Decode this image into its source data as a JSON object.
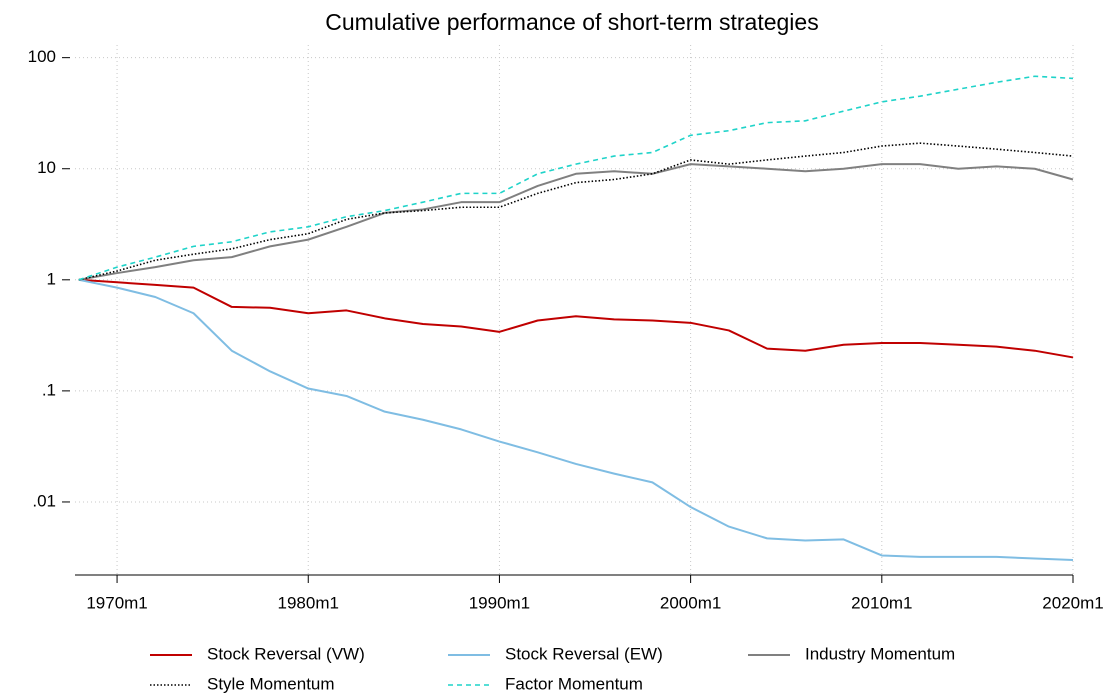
{
  "chart_data": {
    "type": "line",
    "title": "Cumulative performance of short-term strategies",
    "x": [
      1968,
      1970,
      1972,
      1974,
      1976,
      1978,
      1980,
      1982,
      1984,
      1986,
      1988,
      1990,
      1992,
      1994,
      1996,
      1998,
      2000,
      2002,
      2004,
      2006,
      2008,
      2010,
      2012,
      2014,
      2016,
      2018,
      2020
    ],
    "xlim": [
      1967.8,
      2020
    ],
    "xticks": [
      {
        "value": 1970,
        "label": "1970m1"
      },
      {
        "value": 1980,
        "label": "1980m1"
      },
      {
        "value": 1990,
        "label": "1990m1"
      },
      {
        "value": 2000,
        "label": "2000m1"
      },
      {
        "value": 2010,
        "label": "2010m1"
      },
      {
        "value": 2020,
        "label": "2020m1"
      }
    ],
    "ylim": [
      0.0022,
      130
    ],
    "yticks": [
      100,
      10,
      1,
      {
        "value": 0.1,
        "label": ".1"
      },
      {
        "value": 0.01,
        "label": ".01"
      }
    ],
    "log_scale": "y",
    "grid": true,
    "legend": "bottom",
    "series": [
      {
        "name": "Stock Reversal (VW)",
        "color": "#c00000",
        "dash": "solid",
        "values": [
          1,
          0.95,
          0.9,
          0.85,
          0.57,
          0.56,
          0.5,
          0.53,
          0.45,
          0.4,
          0.38,
          0.34,
          0.43,
          0.47,
          0.44,
          0.43,
          0.41,
          0.35,
          0.24,
          0.23,
          0.26,
          0.27,
          0.27,
          0.26,
          0.25,
          0.23,
          0.2
        ]
      },
      {
        "name": "Stock Reversal (EW)",
        "color": "#7fbde3",
        "dash": "solid",
        "values": [
          1,
          0.85,
          0.7,
          0.5,
          0.23,
          0.15,
          0.105,
          0.09,
          0.065,
          0.055,
          0.045,
          0.035,
          0.028,
          0.022,
          0.018,
          0.015,
          0.009,
          0.006,
          0.0047,
          0.0045,
          0.0046,
          0.0033,
          0.0032,
          0.0032,
          0.0032,
          0.0031,
          0.003
        ]
      },
      {
        "name": "Industry Momentum",
        "color": "#808080",
        "dash": "solid",
        "values": [
          1,
          1.15,
          1.3,
          1.5,
          1.6,
          2.0,
          2.3,
          3.0,
          4.0,
          4.3,
          5.0,
          5.0,
          7,
          9,
          9.5,
          9,
          11,
          10.5,
          10,
          9.5,
          10,
          11,
          11,
          10,
          10.5,
          10,
          8
        ]
      },
      {
        "name": "Style Momentum",
        "color": "#000000",
        "dash": "dotted",
        "values": [
          1,
          1.2,
          1.5,
          1.7,
          1.9,
          2.3,
          2.6,
          3.5,
          4,
          4.2,
          4.5,
          4.5,
          6,
          7.5,
          8,
          9,
          12,
          11,
          12,
          13,
          14,
          16,
          17,
          16,
          15,
          14,
          13
        ]
      },
      {
        "name": "Factor Momentum",
        "color": "#1fd3c9",
        "dash": "dashed",
        "values": [
          1,
          1.3,
          1.6,
          2.0,
          2.2,
          2.7,
          3.0,
          3.7,
          4.2,
          5,
          6,
          6,
          9,
          11,
          13,
          14,
          20,
          22,
          26,
          27,
          33,
          40,
          45,
          52,
          60,
          68,
          65
        ]
      }
    ]
  }
}
